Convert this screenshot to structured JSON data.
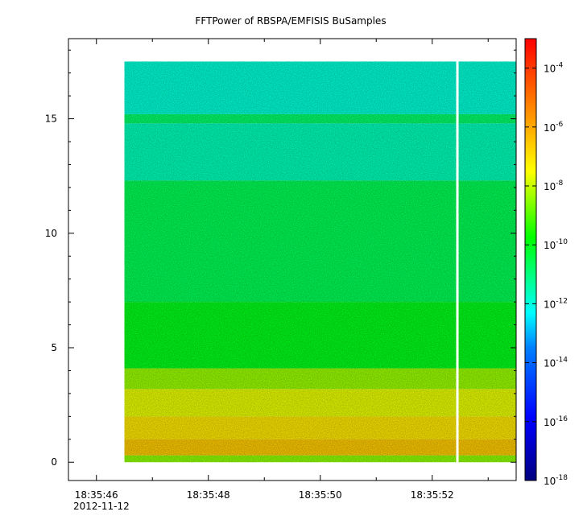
{
  "chart_data": {
    "type": "heatmap",
    "title": "FFTPower of RBSPA/EMFISIS  BuSamples",
    "xlabel": "",
    "ylabel": "",
    "x_axis": {
      "range": [
        "18:35:45.5",
        "18:35:53.5"
      ],
      "ticks": [
        "18:35:46",
        "18:35:48",
        "18:35:50",
        "18:35:52"
      ],
      "tick_values": [
        46,
        48,
        50,
        52
      ],
      "range_values": [
        45.5,
        53.5
      ],
      "minor_ticks": [
        47,
        49,
        51,
        53
      ],
      "date_label": "2012-11-12"
    },
    "y_axis": {
      "range": [
        -0.8,
        18.5
      ],
      "ticks": [
        "0",
        "5",
        "10",
        "15"
      ],
      "tick_values": [
        0,
        5,
        10,
        15
      ]
    },
    "data_x_range": [
      46.5,
      53.5
    ],
    "data_y_range": [
      0,
      17.5
    ],
    "gap_x": 52.45,
    "bands": [
      {
        "y_from": 0.0,
        "y_to": 0.3,
        "log10_power": -8.5
      },
      {
        "y_from": 0.3,
        "y_to": 1.0,
        "log10_power": -6.6
      },
      {
        "y_from": 1.0,
        "y_to": 2.0,
        "log10_power": -7.1
      },
      {
        "y_from": 2.0,
        "y_to": 3.2,
        "log10_power": -7.7
      },
      {
        "y_from": 3.2,
        "y_to": 4.1,
        "log10_power": -8.4
      },
      {
        "y_from": 4.1,
        "y_to": 7.0,
        "log10_power": -10.0
      },
      {
        "y_from": 7.0,
        "y_to": 12.3,
        "log10_power": -10.6
      },
      {
        "y_from": 12.3,
        "y_to": 14.8,
        "log10_power": -11.6
      },
      {
        "y_from": 14.8,
        "y_to": 15.2,
        "log10_power": -10.8
      },
      {
        "y_from": 15.2,
        "y_to": 17.5,
        "log10_power": -11.9
      }
    ],
    "colorbar": {
      "scale": "log",
      "range": [
        1e-18,
        0.001
      ],
      "ticks": [
        {
          "base": "10",
          "exp": "-4"
        },
        {
          "base": "10",
          "exp": "-6"
        },
        {
          "base": "10",
          "exp": "-8"
        },
        {
          "base": "10",
          "exp": "-10"
        },
        {
          "base": "10",
          "exp": "-12"
        },
        {
          "base": "10",
          "exp": "-14"
        },
        {
          "base": "10",
          "exp": "-16"
        },
        {
          "base": "10",
          "exp": "-18"
        }
      ],
      "tick_log_values": [
        -4,
        -6,
        -8,
        -10,
        -12,
        -14,
        -16,
        -18
      ],
      "colors": [
        "#00007f",
        "#0000ff",
        "#00ffff",
        "#00ff00",
        "#ffff00",
        "#ff7f00",
        "#ff0000"
      ]
    },
    "grid": false
  }
}
